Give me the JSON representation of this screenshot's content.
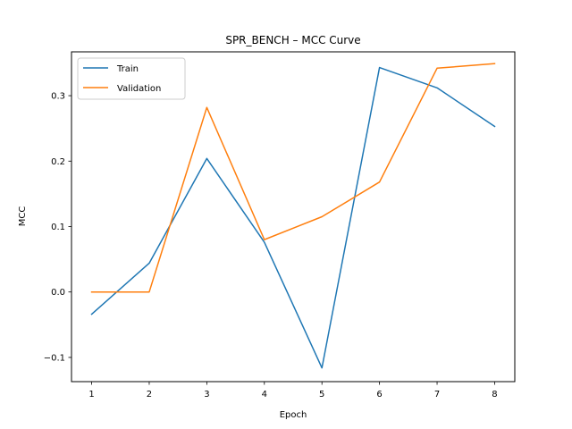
{
  "chart_data": {
    "type": "line",
    "title": "SPR_BENCH – MCC Curve",
    "xlabel": "Epoch",
    "ylabel": "MCC",
    "x": [
      1,
      2,
      3,
      4,
      5,
      6,
      7,
      8
    ],
    "x_ticks": [
      "1",
      "2",
      "3",
      "4",
      "5",
      "6",
      "7",
      "8"
    ],
    "xlim": [
      0.65,
      8.35
    ],
    "ylim": [
      -0.137,
      0.367
    ],
    "y_ticks": [
      -0.1,
      0.0,
      0.1,
      0.2,
      0.3
    ],
    "y_tick_labels": [
      "−0.1",
      "0.0",
      "0.1",
      "0.2",
      "0.3"
    ],
    "grid": false,
    "legend_position": "top-left",
    "series": [
      {
        "name": "Train",
        "color": "#1f77b4",
        "values": [
          -0.034,
          0.044,
          0.204,
          0.076,
          -0.116,
          0.343,
          0.312,
          0.253
        ]
      },
      {
        "name": "Validation",
        "color": "#ff7f0e",
        "values": [
          0.0,
          0.0,
          0.282,
          0.08,
          0.115,
          0.168,
          0.342,
          0.349
        ]
      }
    ]
  }
}
